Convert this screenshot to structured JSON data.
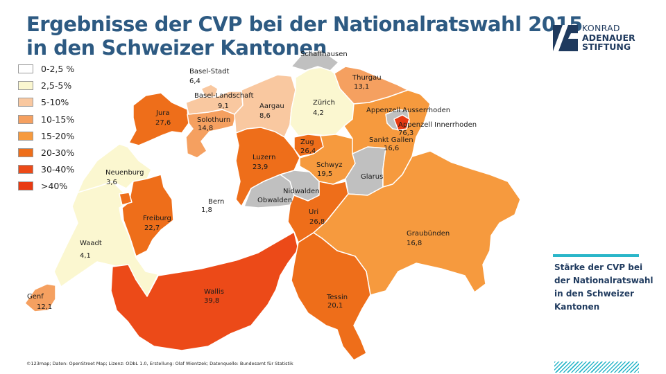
{
  "title": {
    "line1": "Ergebnisse der CVP bei der Nationalratswahl 2015",
    "line2": "in den Schweizer Kantonen"
  },
  "legend": [
    {
      "label": "0-2,5 %",
      "color": "#ffffff"
    },
    {
      "label": "2,5-5%",
      "color": "#fbf7d0"
    },
    {
      "label": "5-10%",
      "color": "#f9c8a0"
    },
    {
      "label": "10-15%",
      "color": "#f5a060"
    },
    {
      "label": "15-20%",
      "color": "#f69a3e"
    },
    {
      "label": "20-30%",
      "color": "#ee6e1a"
    },
    {
      "label": "30-40%",
      "color": "#ec4a18"
    },
    {
      "label": ">40%",
      "color": "#e83a12"
    }
  ],
  "no_data_color": "#c0c0c0",
  "cantons": [
    {
      "id": "bern",
      "name": "Bern",
      "value": "1,8",
      "color": "#ffffff"
    },
    {
      "id": "waadt",
      "name": "Waadt",
      "value": "4,1",
      "color": "#fbf7d0"
    },
    {
      "id": "neuenburg",
      "name": "Neuenburg",
      "value": "3,6",
      "color": "#fbf7d0"
    },
    {
      "id": "genf",
      "name": "Genf",
      "value": "12,1",
      "color": "#f5a060"
    },
    {
      "id": "freiburg",
      "name": "Freiburg",
      "value": "22,7",
      "color": "#ee6e1a"
    },
    {
      "id": "wallis",
      "name": "Wallis",
      "value": "39,8",
      "color": "#ec4a18"
    },
    {
      "id": "jura",
      "name": "Jura",
      "value": "27,6",
      "color": "#ee6e1a"
    },
    {
      "id": "solothurn",
      "name": "Solothurn",
      "value": "14,8",
      "color": "#f5a060"
    },
    {
      "id": "basel-stadt",
      "name": "Basel-Stadt",
      "value": "6,4",
      "color": "#f9c8a0"
    },
    {
      "id": "basel-landschaft",
      "name": "Basel-Landschaft",
      "value": "9,1",
      "color": "#f9c8a0"
    },
    {
      "id": "aargau",
      "name": "Aargau",
      "value": "8,6",
      "color": "#f9c8a0"
    },
    {
      "id": "zuerich",
      "name": "Zürich",
      "value": "4,2",
      "color": "#fbf7d0"
    },
    {
      "id": "schaffhausen",
      "name": "Schaffhausen",
      "value": "",
      "color": "#c0c0c0"
    },
    {
      "id": "thurgau",
      "name": "Thurgau",
      "value": "13,1",
      "color": "#f5a060"
    },
    {
      "id": "luzern",
      "name": "Luzern",
      "value": "23,9",
      "color": "#ee6e1a"
    },
    {
      "id": "zug",
      "name": "Zug",
      "value": "26,4",
      "color": "#ee6e1a"
    },
    {
      "id": "schwyz",
      "name": "Schwyz",
      "value": "19,5",
      "color": "#f69a3e"
    },
    {
      "id": "obwalden",
      "name": "Obwalden",
      "value": "",
      "color": "#c0c0c0"
    },
    {
      "id": "nidwalden",
      "name": "Nidwalden",
      "value": "",
      "color": "#c0c0c0"
    },
    {
      "id": "uri",
      "name": "Uri",
      "value": "26,8",
      "color": "#ee6e1a"
    },
    {
      "id": "glarus",
      "name": "Glarus",
      "value": "",
      "color": "#c0c0c0"
    },
    {
      "id": "sankt-gallen",
      "name": "Sankt Gallen",
      "value": "16,6",
      "color": "#f69a3e"
    },
    {
      "id": "appenzell-ausserrhoden",
      "name": "Appenzell Ausserrhoden",
      "value": "",
      "color": "#c0c0c0"
    },
    {
      "id": "appenzell-innerrhoden",
      "name": "Appenzell Innerrhoden",
      "value": "76,3",
      "color": "#e83a12"
    },
    {
      "id": "graubuenden",
      "name": "Graubünden",
      "value": "16,8",
      "color": "#f69a3e"
    },
    {
      "id": "tessin",
      "name": "Tessin",
      "value": "20,1",
      "color": "#ee6e1a"
    }
  ],
  "logo": {
    "line1": "KONRAD",
    "line2": "ADENAUER",
    "line3": "STIFTUNG",
    "color": "#1f3a5e"
  },
  "side_text": [
    "Stärke der CVP bei",
    "der Nationalratswahl",
    "in den Schweizer",
    "Kantonen"
  ],
  "source": "©123map; Daten: OpenStreet Map; Lizenz: ODbL 1.0, Erstellung: Olaf Wientzek; Datenquelle: Bundesamt für Statistik",
  "accent_color": "#2ab6c9"
}
